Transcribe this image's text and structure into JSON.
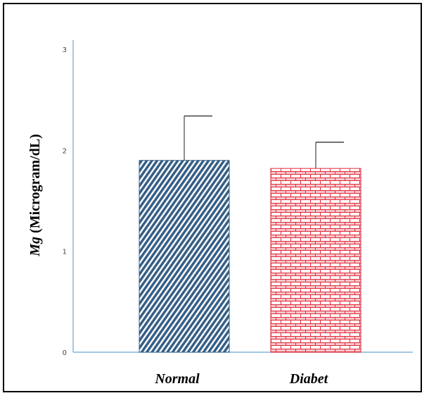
{
  "chart_data": {
    "type": "bar",
    "categories": [
      "Normal",
      "Diabet"
    ],
    "values": [
      1.9,
      1.82
    ],
    "error_upper": [
      2.34,
      2.08
    ],
    "ylabel_symbol": "Mg",
    "ylabel_unit": " (Microgram/dL)",
    "ylim": [
      0,
      3
    ],
    "yticks": [
      "0",
      "1",
      "2",
      "3"
    ],
    "grid": false,
    "colors": {
      "axis": "#6aa8d8",
      "normal": "#355f86",
      "diabet": "#e02b3a"
    }
  }
}
